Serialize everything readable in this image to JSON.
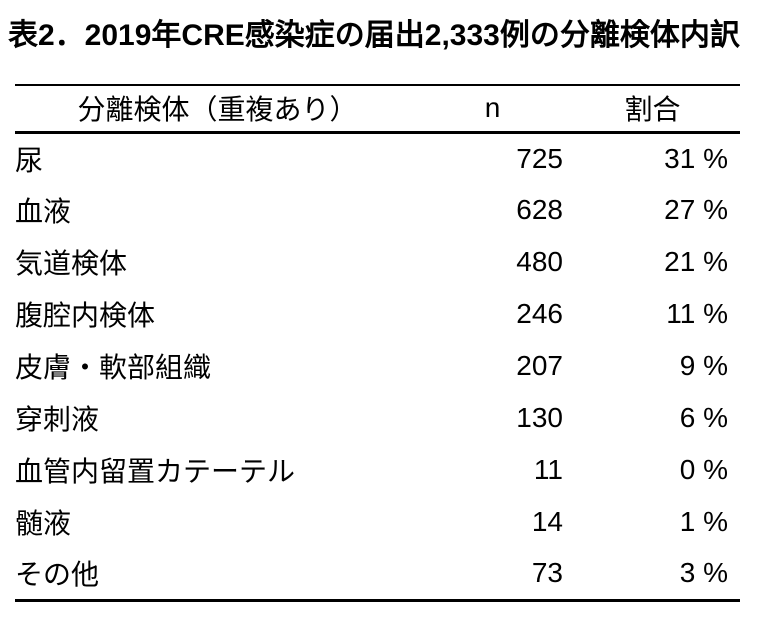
{
  "title": "表2．2019年CRE感染症の届出2,333例の分離検体内訳",
  "colors": {
    "text": "#000000",
    "background": "#ffffff",
    "border": "#000000"
  },
  "table": {
    "columns": [
      "分離検体（重複あり）",
      "n",
      "割合"
    ],
    "rows": [
      {
        "specimen": "尿",
        "n": "725",
        "pct": "31 %"
      },
      {
        "specimen": "血液",
        "n": "628",
        "pct": "27 %"
      },
      {
        "specimen": "気道検体",
        "n": "480",
        "pct": "21 %"
      },
      {
        "specimen": "腹腔内検体",
        "n": "246",
        "pct": "11 %"
      },
      {
        "specimen": "皮膚・軟部組織",
        "n": "207",
        "pct": "9 %"
      },
      {
        "specimen": "穿刺液",
        "n": "130",
        "pct": "6 %"
      },
      {
        "specimen": "血管内留置カテーテル",
        "n": "11",
        "pct": "0 %"
      },
      {
        "specimen": "髄液",
        "n": "14",
        "pct": "1 %"
      },
      {
        "specimen": "その他",
        "n": "73",
        "pct": "3 %"
      }
    ]
  },
  "chart_data": {
    "type": "table",
    "title": "表2．2019年CRE感染症の届出2,333例の分離検体内訳",
    "columns": [
      "分離検体（重複あり）",
      "n",
      "割合"
    ],
    "total_cases": 2333,
    "rows": [
      [
        "尿",
        725,
        31
      ],
      [
        "血液",
        628,
        27
      ],
      [
        "気道検体",
        480,
        21
      ],
      [
        "腹腔内検体",
        246,
        11
      ],
      [
        "皮膚・軟部組織",
        207,
        9
      ],
      [
        "穿刺液",
        130,
        6
      ],
      [
        "血管内留置カテーテル",
        11,
        0
      ],
      [
        "髄液",
        14,
        1
      ],
      [
        "その他",
        73,
        3
      ]
    ],
    "percent_unit": "%"
  }
}
